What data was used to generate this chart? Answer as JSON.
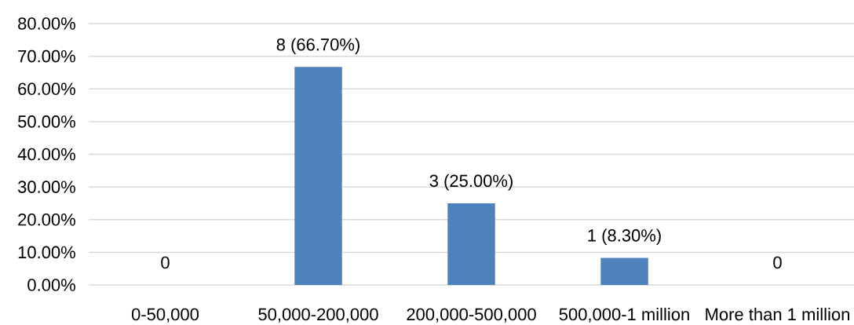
{
  "chart_data": {
    "type": "bar",
    "categories": [
      "0-50,000",
      "50,000-200,000",
      "200,000-500,000",
      "500,000-1 million",
      "More than 1 million"
    ],
    "values": [
      0,
      66.7,
      25,
      8.3,
      0
    ],
    "value_labels": [
      "0",
      "8 (66.70%)",
      "3 (25.00%)",
      "1 (8.30%)",
      "0"
    ],
    "color": "#4f81bd",
    "ylim": [
      0,
      80
    ],
    "yticks": [
      {
        "value": 0,
        "label": "0.00%"
      },
      {
        "value": 10,
        "label": "10.00%"
      },
      {
        "value": 20,
        "label": "20.00%"
      },
      {
        "value": 30,
        "label": "30.00%"
      },
      {
        "value": 40,
        "label": "40.00%"
      },
      {
        "value": 50,
        "label": "50.00%"
      },
      {
        "value": 60,
        "label": "60.00%"
      },
      {
        "value": 70,
        "label": "70.00%"
      },
      {
        "value": 80,
        "label": "80.00%"
      }
    ],
    "grid": "y"
  }
}
